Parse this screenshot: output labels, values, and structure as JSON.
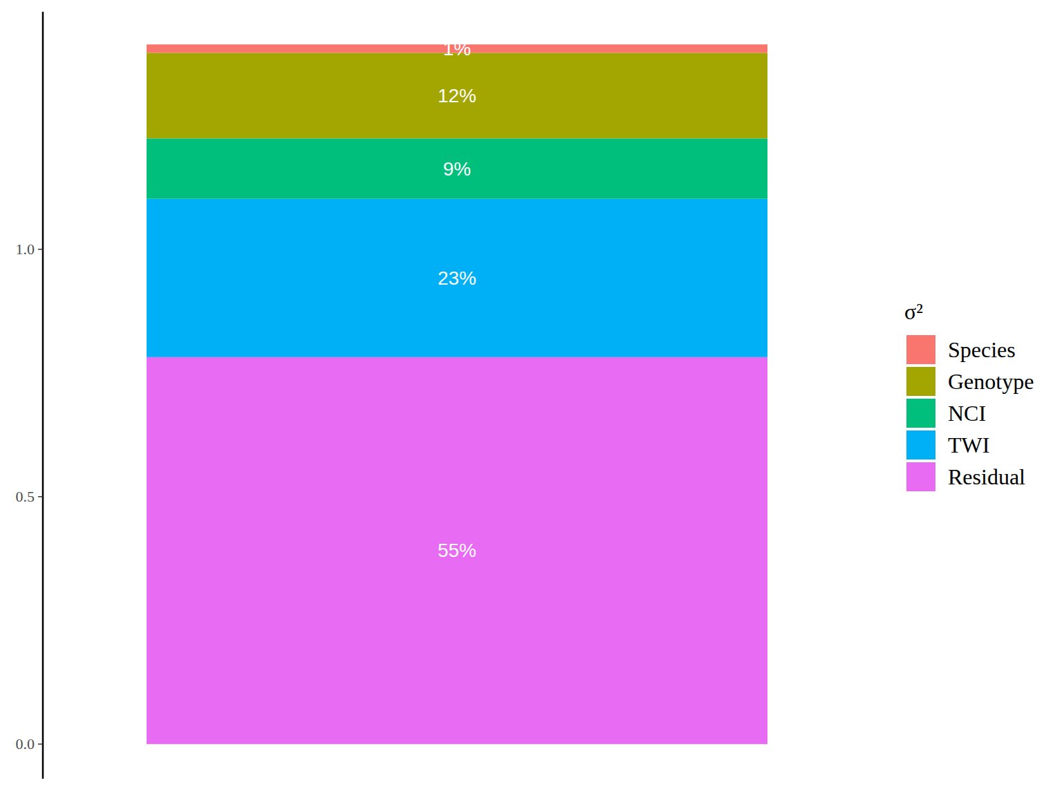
{
  "chart_data": {
    "type": "bar",
    "stacked": true,
    "legend": "right",
    "legend_title": "σ²",
    "ylim": [
      -0.07,
      1.48
    ],
    "yticks": [
      {
        "value": 0,
        "label": "0.0"
      },
      {
        "value": 0.5,
        "label": "0.5"
      },
      {
        "value": 1,
        "label": "1.0"
      }
    ],
    "series": [
      {
        "name": "Species",
        "color": "#F8766D",
        "values": [
          0.017
        ],
        "label": "1%"
      },
      {
        "name": "Genotype",
        "color": "#A3A500",
        "values": [
          0.173
        ],
        "label": "12%"
      },
      {
        "name": "NCI",
        "color": "#00BF7D",
        "values": [
          0.122
        ],
        "label": "9%"
      },
      {
        "name": "TWI",
        "color": "#00B0F6",
        "values": [
          0.32
        ],
        "label": "23%"
      },
      {
        "name": "Residual",
        "color": "#E76BF3",
        "values": [
          0.782
        ],
        "label": "55%"
      }
    ]
  }
}
